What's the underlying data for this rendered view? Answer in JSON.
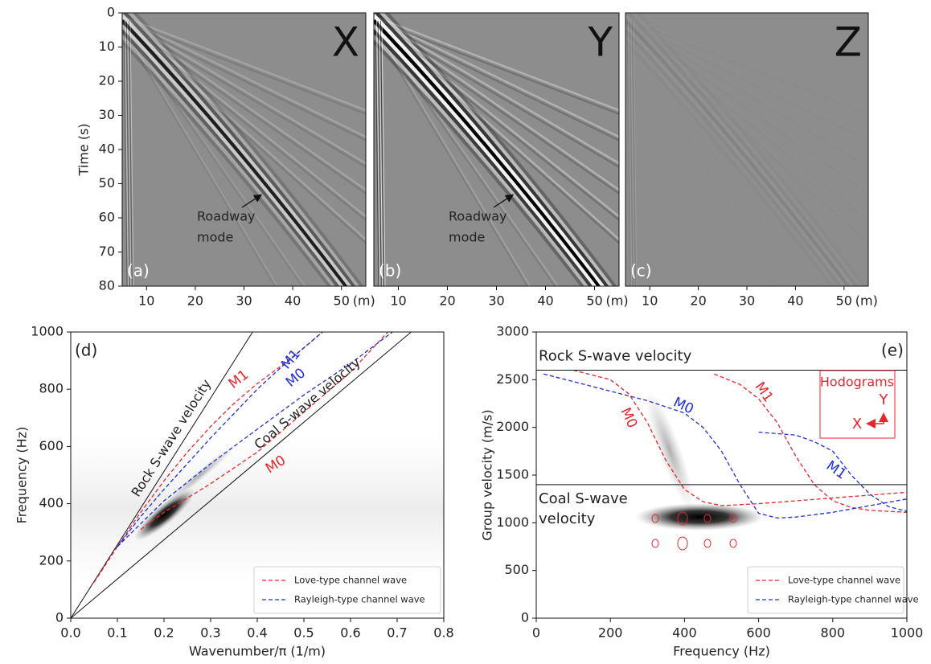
{
  "chart_data": [
    {
      "type": "seismogram",
      "panel_label": "(a)",
      "component": "X",
      "ylabel": "Time (s)",
      "xunit": "(m)",
      "xlim": [
        5,
        55
      ],
      "xticks": [
        10,
        20,
        30,
        40,
        50
      ],
      "ylim": [
        0,
        80
      ],
      "yticks": [
        0,
        10,
        20,
        30,
        40,
        50,
        60,
        70,
        80
      ],
      "y_inverted": true,
      "annotation": [
        "Roadway",
        "mode"
      ]
    },
    {
      "type": "seismogram",
      "panel_label": "(b)",
      "component": "Y",
      "xunit": "(m)",
      "xlim": [
        5,
        55
      ],
      "xticks": [
        10,
        20,
        30,
        40,
        50
      ],
      "ylim": [
        0,
        80
      ],
      "y_inverted": true,
      "annotation": [
        "Roadway",
        "mode"
      ]
    },
    {
      "type": "seismogram",
      "panel_label": "(c)",
      "component": "Z",
      "xunit": "(m)",
      "xlim": [
        5,
        55
      ],
      "xticks": [
        10,
        20,
        30,
        40,
        50
      ],
      "ylim": [
        0,
        80
      ],
      "y_inverted": true
    },
    {
      "type": "line",
      "panel_label": "(d)",
      "xlabel": "Wavenumber/π (1/m)",
      "ylabel": "Frequency (Hz)",
      "xlim": [
        0,
        0.8
      ],
      "xticks": [
        {
          "value": 0,
          "label": "0.0"
        },
        0.1,
        0.2,
        0.3,
        0.4,
        0.5,
        0.6,
        0.7,
        0.8
      ],
      "ylim": [
        0,
        1000
      ],
      "yticks": [
        0,
        200,
        400,
        600,
        800,
        1000
      ],
      "legend": "lower right",
      "line_style": "dashed",
      "reference_lines": [
        {
          "label": "Rock S-wave velocity",
          "x": [
            0,
            0.39
          ],
          "y": [
            0,
            1000
          ]
        },
        {
          "label": "Coal S-wave velocity",
          "x": [
            0,
            0.73
          ],
          "y": [
            0,
            1000
          ]
        }
      ],
      "series": [
        {
          "name": "Love-type channel wave",
          "color": "#e8262b",
          "modes": [
            {
              "label": "M0",
              "x": [
                0.15,
                0.2,
                0.3,
                0.4,
                0.5,
                0.6,
                0.68
              ],
              "y": [
                310,
                370,
                470,
                580,
                720,
                860,
                1000
              ]
            },
            {
              "label": "M1",
              "x": [
                0.05,
                0.1,
                0.15,
                0.2,
                0.25,
                0.3,
                0.35,
                0.4,
                0.45,
                0.5,
                0.54
              ],
              "y": [
                125,
                250,
                370,
                480,
                580,
                670,
                750,
                820,
                880,
                945,
                1000
              ]
            }
          ]
        },
        {
          "name": "Rayleigh-type channel wave",
          "color": "#1f2fd6",
          "modes": [
            {
              "label": "M0",
              "x": [
                0.1,
                0.15,
                0.2,
                0.3,
                0.4,
                0.5,
                0.6,
                0.69
              ],
              "y": [
                250,
                330,
                410,
                540,
                660,
                780,
                890,
                1000
              ]
            },
            {
              "label": "M1",
              "x": [
                0.1,
                0.15,
                0.2,
                0.25,
                0.3,
                0.35,
                0.4,
                0.45,
                0.5,
                0.54
              ],
              "y": [
                250,
                355,
                450,
                540,
                630,
                715,
                800,
                875,
                945,
                1000
              ]
            }
          ]
        }
      ]
    },
    {
      "type": "line",
      "panel_label": "(e)",
      "xlabel": "Frequency (Hz)",
      "ylabel": "Group velocity (m/s)",
      "xlim": [
        0,
        1000
      ],
      "xticks": [
        0,
        200,
        400,
        600,
        800,
        1000
      ],
      "ylim": [
        0,
        3000
      ],
      "yticks": [
        0,
        500,
        1000,
        1500,
        2000,
        2500,
        3000
      ],
      "legend": "lower right",
      "line_style": "dashed",
      "reference_lines": [
        {
          "label_lines": [
            "Rock S-wave velocity"
          ],
          "value": 2600
        },
        {
          "label_lines": [
            "Coal S-wave",
            "velocity"
          ],
          "value": 1400
        }
      ],
      "hodogram": {
        "title": "Hodograms",
        "axes": [
          "Y",
          "X"
        ]
      },
      "series": [
        {
          "name": "Love-type channel wave",
          "color": "#e8262b",
          "modes": [
            {
              "label": "M0",
              "x": [
                100,
                200,
                250,
                300,
                350,
                400,
                450,
                500,
                600,
                700,
                800,
                900,
                1000
              ],
              "y": [
                2600,
                2500,
                2350,
                2050,
                1650,
                1350,
                1220,
                1180,
                1200,
                1230,
                1260,
                1290,
                1320
              ]
            },
            {
              "label": "M1",
              "x": [
                480,
                550,
                600,
                650,
                700,
                750,
                800,
                850,
                900,
                950,
                1000
              ],
              "y": [
                2560,
                2450,
                2300,
                2050,
                1700,
                1400,
                1230,
                1160,
                1130,
                1120,
                1110
              ]
            }
          ]
        },
        {
          "name": "Rayleigh-type channel wave",
          "color": "#1f2fd6",
          "modes": [
            {
              "label": "M0",
              "x": [
                20,
                100,
                200,
                300,
                400,
                450,
                500,
                550,
                600,
                650,
                700,
                800,
                900,
                1000
              ],
              "y": [
                2560,
                2480,
                2380,
                2280,
                2150,
                2000,
                1750,
                1400,
                1100,
                1050,
                1060,
                1110,
                1180,
                1250
              ]
            },
            {
              "label": "M1",
              "x": [
                600,
                700,
                750,
                800,
                850,
                900,
                950,
                1000
              ],
              "y": [
                1950,
                1920,
                1850,
                1750,
                1500,
                1300,
                1170,
                1120
              ]
            }
          ]
        }
      ]
    }
  ]
}
